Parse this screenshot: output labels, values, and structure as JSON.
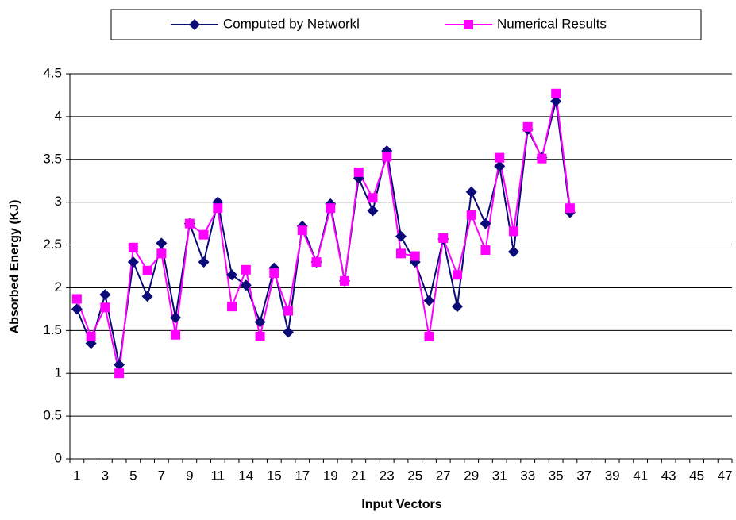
{
  "chart_data": {
    "type": "line",
    "x_label": "Input Vectors",
    "y_label": "Absorbed Energy (KJ)",
    "categories": [
      "1",
      null,
      "3",
      null,
      "5",
      null,
      "7",
      null,
      "9",
      null,
      "11",
      null,
      "14",
      null,
      "15",
      null,
      "17",
      null,
      "19",
      null,
      "21",
      null,
      "23",
      null,
      "25",
      null,
      "27",
      null,
      "29",
      null,
      "31",
      null,
      "33",
      null,
      "35",
      null,
      "37",
      null,
      "39",
      null,
      "41",
      null,
      "43",
      null,
      "45",
      null,
      "47"
    ],
    "series": [
      {
        "name": "Computed by Networkl",
        "color": "#0a0a78",
        "marker": "diamond",
        "values": [
          1.75,
          1.35,
          1.92,
          1.1,
          2.3,
          1.9,
          2.52,
          1.65,
          2.75,
          2.3,
          3.0,
          2.15,
          2.03,
          1.6,
          2.23,
          1.48,
          2.72,
          2.3,
          2.98,
          2.08,
          3.28,
          2.9,
          3.6,
          2.6,
          2.3,
          1.85,
          2.57,
          1.78,
          3.12,
          2.75,
          3.42,
          2.42,
          3.85,
          3.52,
          4.18,
          2.88,
          null,
          null,
          null,
          null,
          null,
          null,
          null,
          null,
          null,
          null,
          null
        ]
      },
      {
        "name": "Numerical Results",
        "color": "#ff00ff",
        "marker": "square",
        "values": [
          1.87,
          1.43,
          1.77,
          1.0,
          2.47,
          2.2,
          2.4,
          1.45,
          2.75,
          2.62,
          2.93,
          1.78,
          2.21,
          1.43,
          2.17,
          1.73,
          2.67,
          2.3,
          2.93,
          2.08,
          3.35,
          3.05,
          3.53,
          2.4,
          2.37,
          1.43,
          2.58,
          2.15,
          2.85,
          2.44,
          3.52,
          2.66,
          3.88,
          3.51,
          4.27,
          2.93,
          null,
          null,
          null,
          null,
          null,
          null,
          null,
          null,
          null,
          null,
          null
        ]
      }
    ],
    "ylim": [
      0,
      4.5
    ],
    "yticks": [
      0,
      0.5,
      1,
      1.5,
      2,
      2.5,
      3,
      3.5,
      4,
      4.5
    ],
    "grid": true,
    "legend": "top"
  }
}
